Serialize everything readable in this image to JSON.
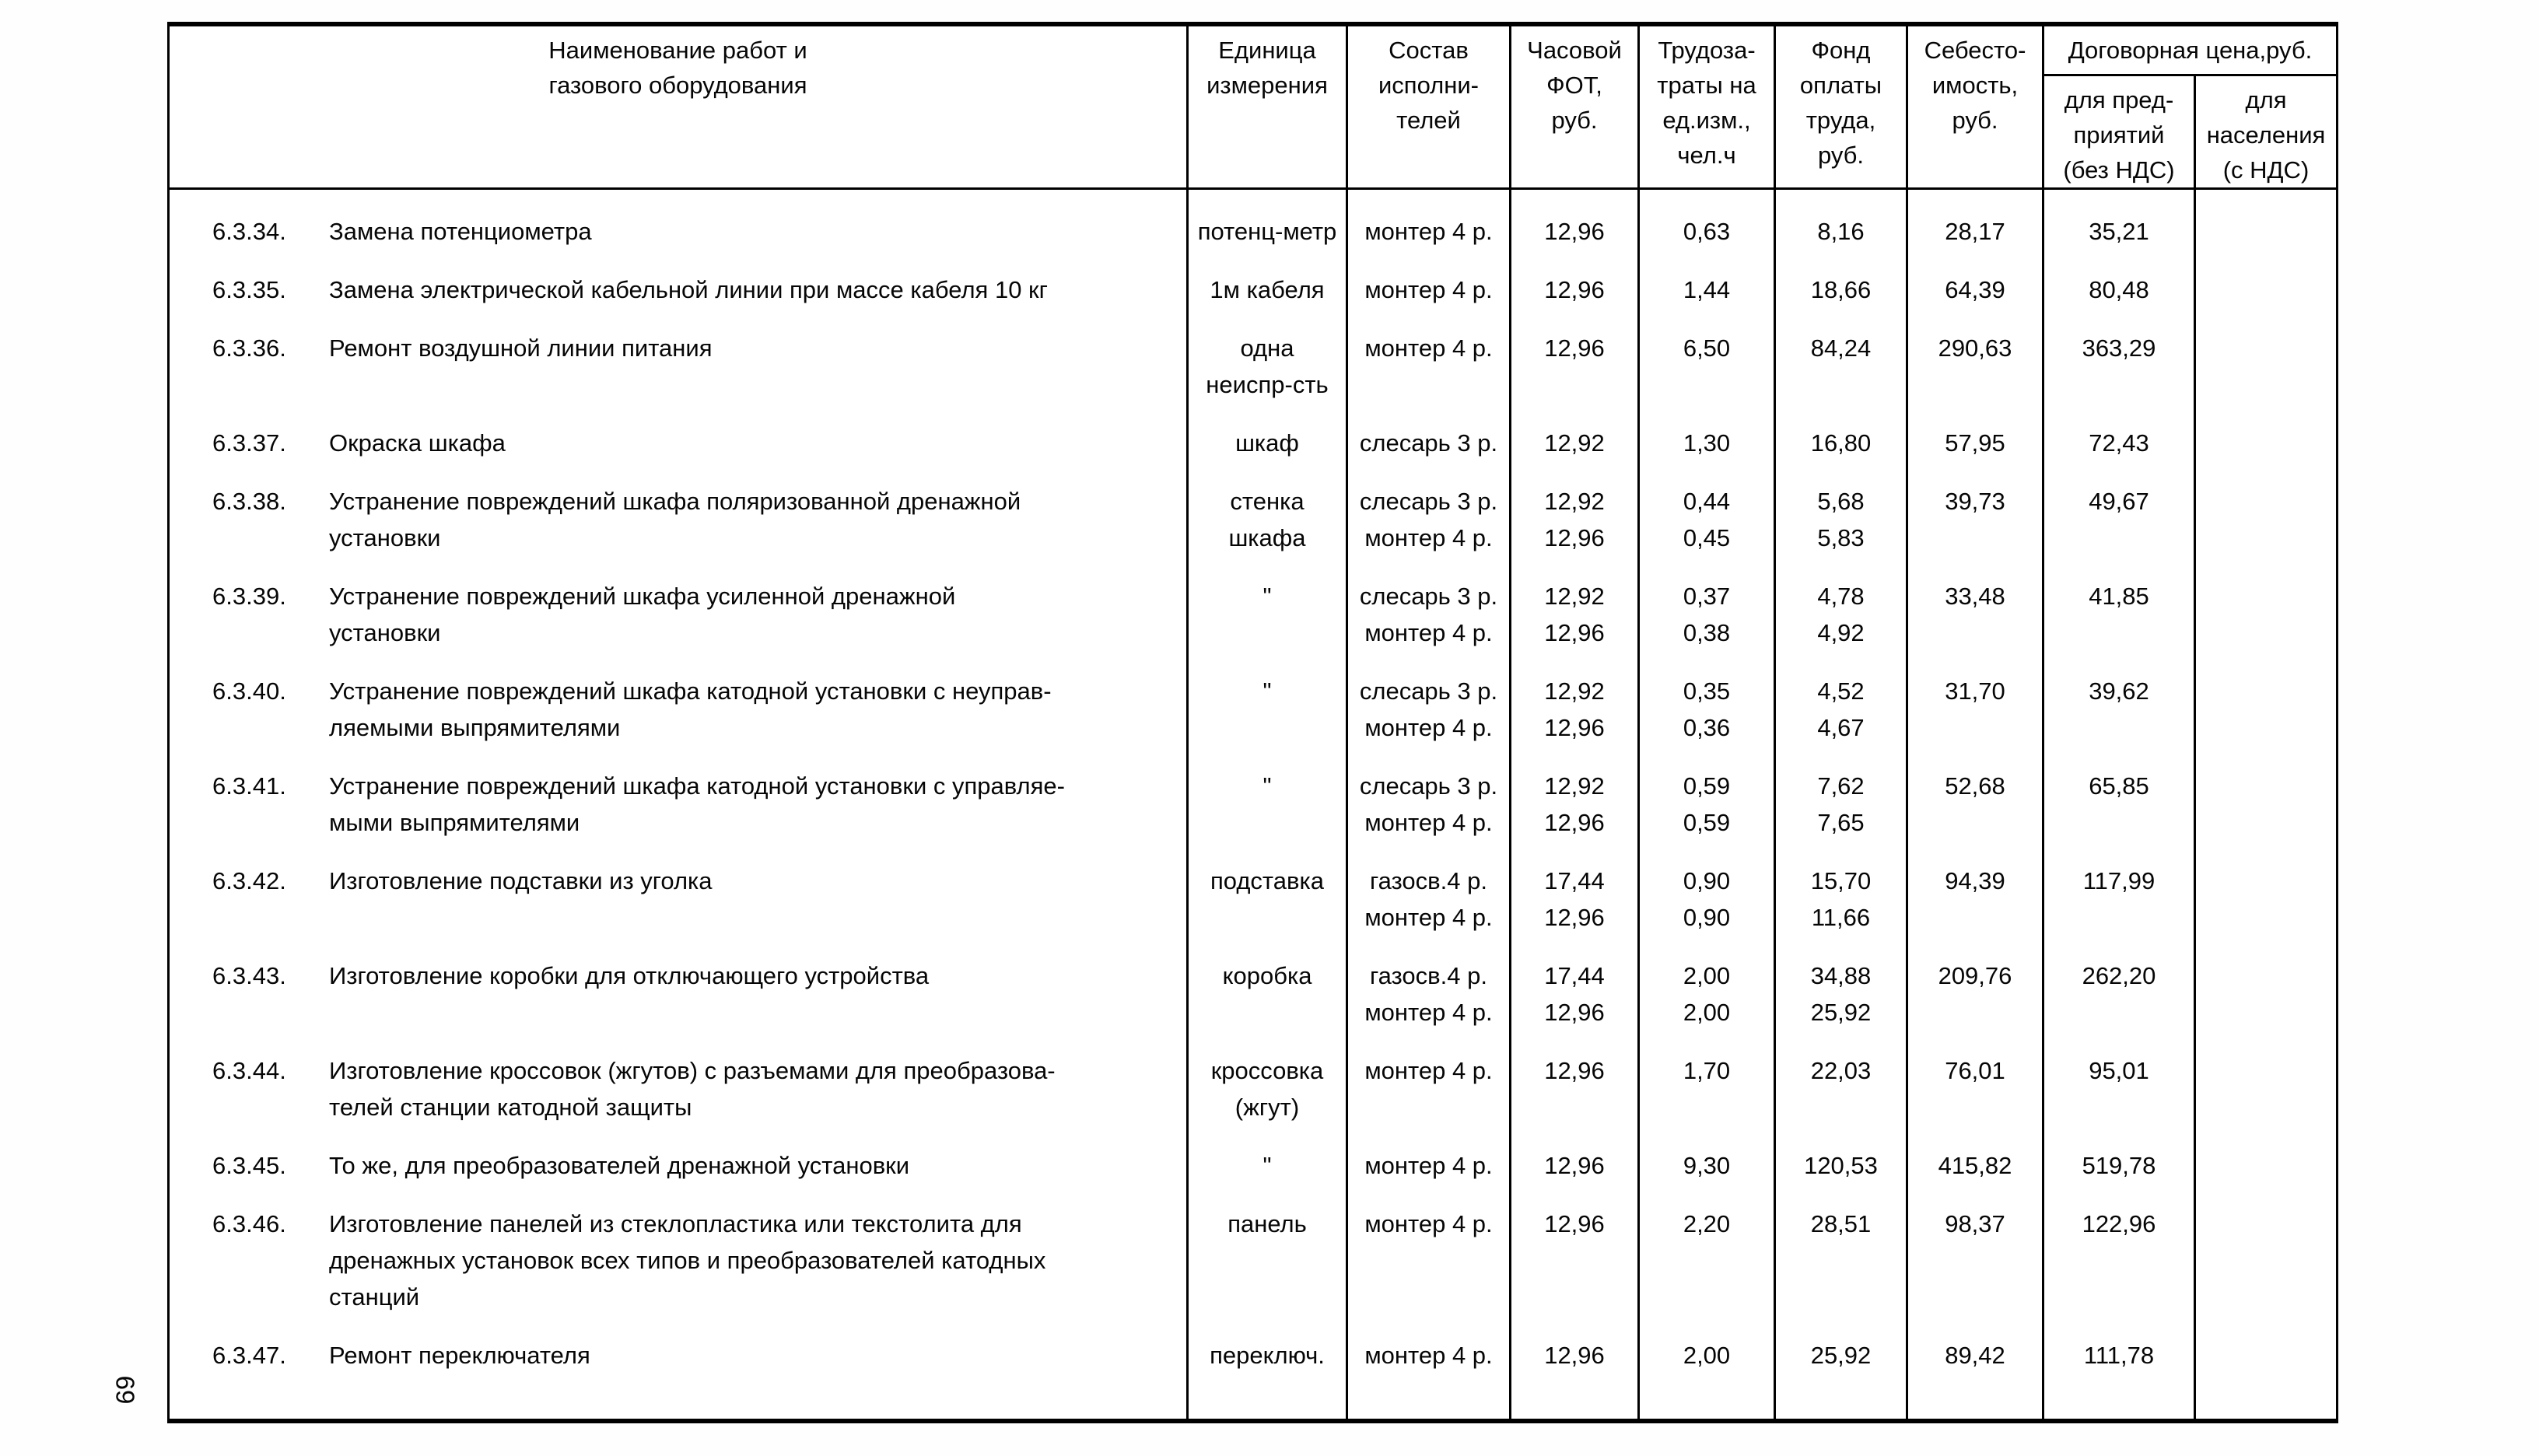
{
  "page_number": "69",
  "table": {
    "header": {
      "name": [
        "Наименование работ и",
        "газового оборудования"
      ],
      "unit": [
        "Единица",
        "измерения"
      ],
      "performers": [
        "Состав",
        "исполни-",
        "телей"
      ],
      "hourly_fot": [
        "Часовой",
        "ФОТ,",
        "руб."
      ],
      "labor": [
        "Трудоза-",
        "траты на",
        "ед.изм.,",
        "чел.ч"
      ],
      "fund": [
        "Фонд",
        "оплаты",
        "труда,",
        "руб."
      ],
      "cost": [
        "Себесто-",
        "имость,",
        "руб."
      ],
      "contract_price": "Договорная цена,руб.",
      "price_enterprises": [
        "для пред-",
        "приятий",
        "(без НДС)"
      ],
      "price_population": [
        "для",
        "населения",
        "(с НДС)"
      ]
    },
    "rows": [
      {
        "num": "6.3.34.",
        "name": [
          "Замена потенциометра"
        ],
        "unit": [
          "потенц-метр"
        ],
        "performers": [
          "монтер 4 р."
        ],
        "fot": [
          "12,96"
        ],
        "labor": [
          "0,63"
        ],
        "fund": [
          "8,16"
        ],
        "cost": "28,17",
        "price_ent": "35,21",
        "price_pop": ""
      },
      {
        "num": "6.3.35.",
        "name": [
          "Замена электрической кабельной линии при массе кабеля 10 кг"
        ],
        "unit": [
          "1м кабеля"
        ],
        "performers": [
          "монтер 4 р."
        ],
        "fot": [
          "12,96"
        ],
        "labor": [
          "1,44"
        ],
        "fund": [
          "18,66"
        ],
        "cost": "64,39",
        "price_ent": "80,48",
        "price_pop": ""
      },
      {
        "num": "6.3.36.",
        "name": [
          "Ремонт воздушной линии питания"
        ],
        "unit": [
          "одна",
          "неиспр-сть"
        ],
        "performers": [
          "монтер 4 р."
        ],
        "fot": [
          "12,96"
        ],
        "labor": [
          "6,50"
        ],
        "fund": [
          "84,24"
        ],
        "cost": "290,63",
        "price_ent": "363,29",
        "price_pop": ""
      },
      {
        "num": "6.3.37.",
        "name": [
          "Окраска шкафа"
        ],
        "unit": [
          "шкаф"
        ],
        "performers": [
          "слесарь 3 р."
        ],
        "fot": [
          "12,92"
        ],
        "labor": [
          "1,30"
        ],
        "fund": [
          "16,80"
        ],
        "cost": "57,95",
        "price_ent": "72,43",
        "price_pop": ""
      },
      {
        "num": "6.3.38.",
        "name": [
          "Устранение повреждений шкафа поляризованной дренажной",
          "установки"
        ],
        "unit": [
          "стенка",
          "шкафа"
        ],
        "performers": [
          "слесарь 3 р.",
          "монтер 4 р."
        ],
        "fot": [
          "12,92",
          "12,96"
        ],
        "labor": [
          "0,44",
          "0,45"
        ],
        "fund": [
          "5,68",
          "5,83"
        ],
        "cost": "39,73",
        "price_ent": "49,67",
        "price_pop": ""
      },
      {
        "num": "6.3.39.",
        "name": [
          "Устранение повреждений шкафа усиленной дренажной",
          "установки"
        ],
        "unit": [
          "\""
        ],
        "performers": [
          "слесарь 3 р.",
          "монтер 4 р."
        ],
        "fot": [
          "12,92",
          "12,96"
        ],
        "labor": [
          "0,37",
          "0,38"
        ],
        "fund": [
          "4,78",
          "4,92"
        ],
        "cost": "33,48",
        "price_ent": "41,85",
        "price_pop": ""
      },
      {
        "num": "6.3.40.",
        "name": [
          "Устранение повреждений шкафа катодной установки с неуправ-",
          "ляемыми выпрямителями"
        ],
        "unit": [
          "\""
        ],
        "performers": [
          "слесарь 3 р.",
          "монтер 4 р."
        ],
        "fot": [
          "12,92",
          "12,96"
        ],
        "labor": [
          "0,35",
          "0,36"
        ],
        "fund": [
          "4,52",
          "4,67"
        ],
        "cost": "31,70",
        "price_ent": "39,62",
        "price_pop": ""
      },
      {
        "num": "6.3.41.",
        "name": [
          "Устранение повреждений шкафа катодной установки с управляе-",
          "мыми выпрямителями"
        ],
        "unit": [
          "\""
        ],
        "performers": [
          "слесарь 3 р.",
          "монтер 4 р."
        ],
        "fot": [
          "12,92",
          "12,96"
        ],
        "labor": [
          "0,59",
          "0,59"
        ],
        "fund": [
          "7,62",
          "7,65"
        ],
        "cost": "52,68",
        "price_ent": "65,85",
        "price_pop": ""
      },
      {
        "num": "6.3.42.",
        "name": [
          "Изготовление подставки из уголка"
        ],
        "unit": [
          "подставка"
        ],
        "performers": [
          "газосв.4 р.",
          "монтер 4 р."
        ],
        "fot": [
          "17,44",
          "12,96"
        ],
        "labor": [
          "0,90",
          "0,90"
        ],
        "fund": [
          "15,70",
          "11,66"
        ],
        "cost": "94,39",
        "price_ent": "117,99",
        "price_pop": ""
      },
      {
        "num": "6.3.43.",
        "name": [
          "Изготовление коробки для отключающего устройства"
        ],
        "unit": [
          "коробка"
        ],
        "performers": [
          "газосв.4 р.",
          "монтер 4 р."
        ],
        "fot": [
          "17,44",
          "12,96"
        ],
        "labor": [
          "2,00",
          "2,00"
        ],
        "fund": [
          "34,88",
          "25,92"
        ],
        "cost": "209,76",
        "price_ent": "262,20",
        "price_pop": ""
      },
      {
        "num": "6.3.44.",
        "name": [
          "Изготовление кроссовок (жгутов) с разъемами  для преобразова-",
          "телей станции катодной защиты"
        ],
        "unit": [
          "кроссовка",
          "(жгут)"
        ],
        "performers": [
          "монтер 4 р."
        ],
        "fot": [
          "12,96"
        ],
        "labor": [
          "1,70"
        ],
        "fund": [
          "22,03"
        ],
        "cost": "76,01",
        "price_ent": "95,01",
        "price_pop": ""
      },
      {
        "num": "6.3.45.",
        "name": [
          "То же,  для преобразователей дренажной установки"
        ],
        "unit": [
          "\""
        ],
        "performers": [
          "монтер 4 р."
        ],
        "fot": [
          "12,96"
        ],
        "labor": [
          "9,30"
        ],
        "fund": [
          "120,53"
        ],
        "cost": "415,82",
        "price_ent": "519,78",
        "price_pop": ""
      },
      {
        "num": "6.3.46.",
        "name": [
          "Изготовление панелей из стеклопластика или текстолита для",
          "дренажных установок всех типов и преобразователей катодных",
          "станций"
        ],
        "unit": [
          "панель"
        ],
        "performers": [
          "монтер 4 р."
        ],
        "fot": [
          "12,96"
        ],
        "labor": [
          "2,20"
        ],
        "fund": [
          "28,51"
        ],
        "cost": "98,37",
        "price_ent": "122,96",
        "price_pop": ""
      },
      {
        "num": "6.3.47.",
        "name": [
          "Ремонт переключателя"
        ],
        "unit": [
          "переключ."
        ],
        "performers": [
          "монтер 4 р."
        ],
        "fot": [
          "12,96"
        ],
        "labor": [
          "2,00"
        ],
        "fund": [
          "25,92"
        ],
        "cost": "89,42",
        "price_ent": "111,78",
        "price_pop": ""
      }
    ]
  }
}
